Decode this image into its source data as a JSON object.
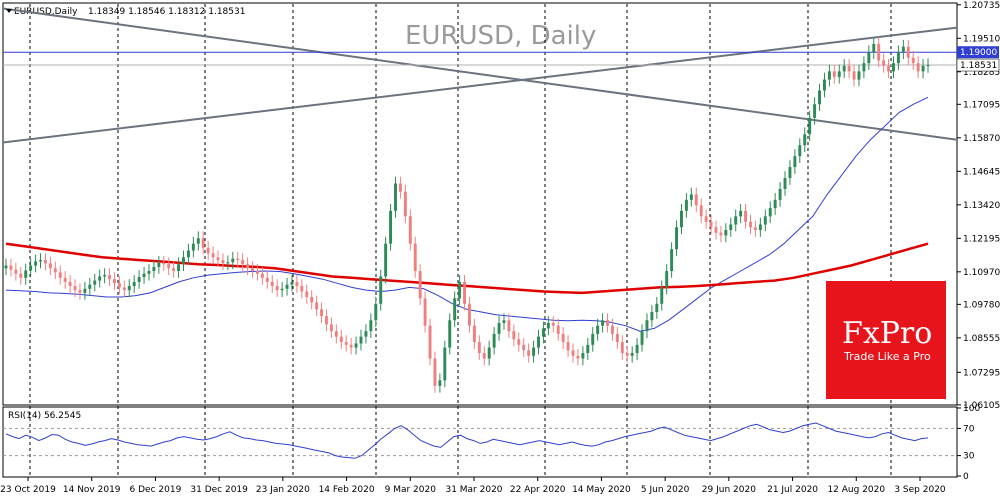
{
  "chart_data": [
    {
      "type": "candlestick",
      "symbol_header": "EURUSD,Daily",
      "ohlc_header": "1.18349 1.18546 1.18312 1.18531",
      "watermark": "EURUSD, Daily",
      "y_ticks": [
        "1.20735",
        "1.19510",
        "1.18285",
        "1.17095",
        "1.15870",
        "1.14645",
        "1.13420",
        "1.12195",
        "1.10970",
        "1.09780",
        "1.08555",
        "1.07295",
        "1.06105"
      ],
      "y_tick_values": [
        1.20735,
        1.1951,
        1.18285,
        1.17095,
        1.1587,
        1.14645,
        1.1342,
        1.12195,
        1.1097,
        1.0978,
        1.08555,
        1.07295,
        1.06105
      ],
      "ylim": [
        1.061,
        1.208
      ],
      "x_labels": [
        "23 Oct 2019",
        "14 Nov 2019",
        "6 Dec 2019",
        "31 Dec 2019",
        "23 Jan 2020",
        "14 Feb 2020",
        "9 Mar 2020",
        "31 Mar 2020",
        "22 Apr 2020",
        "14 May 2020",
        "5 Jun 2020",
        "29 Jun 2020",
        "21 Jul 2020",
        "12 Aug 2020",
        "3 Sep 2020"
      ],
      "horizontal_level": {
        "value": 1.19,
        "label": "1.19000",
        "color": "#2f3fcf"
      },
      "current_price": {
        "value": 1.18531,
        "label": "1.18531"
      },
      "colors": {
        "up": "#2e8b57",
        "down": "#f08080",
        "ma200": "#e00000",
        "ma50": "#2f3fcf",
        "trend": "#6b7380",
        "grid": "#000000"
      },
      "series": [
        {
          "name": "Close",
          "values": [
            1.112,
            1.1105,
            1.109,
            1.1075,
            1.1102,
            1.112,
            1.1135,
            1.114,
            1.1128,
            1.111,
            1.1095,
            1.1075,
            1.106,
            1.1045,
            1.103,
            1.102,
            1.1035,
            1.105,
            1.1065,
            1.108,
            1.1085,
            1.107,
            1.1055,
            1.104,
            1.103,
            1.1045,
            1.106,
            1.1078,
            1.109,
            1.11,
            1.1115,
            1.113,
            1.1125,
            1.111,
            1.11,
            1.1125,
            1.115,
            1.1175,
            1.12,
            1.122,
            1.1185,
            1.1165,
            1.115,
            1.114,
            1.1128,
            1.1132,
            1.1145,
            1.114,
            1.1125,
            1.111,
            1.11,
            1.109,
            1.1075,
            1.106,
            1.1045,
            1.103,
            1.1035,
            1.105,
            1.106,
            1.1045,
            1.1025,
            1.1005,
            1.0985,
            1.096,
            1.0935,
            1.0905,
            1.088,
            1.086,
            1.084,
            1.083,
            1.082,
            1.0835,
            1.086,
            1.088,
            1.092,
            1.098,
            1.108,
            1.12,
            1.132,
            1.142,
            1.139,
            1.13,
            1.12,
            1.11,
            1.1,
            1.09,
            1.078,
            1.068,
            1.07,
            1.082,
            1.092,
            1.1,
            1.106,
            1.098,
            1.09,
            1.084,
            1.08,
            1.078,
            1.082,
            1.087,
            1.091,
            1.092,
            1.088,
            1.085,
            1.083,
            1.081,
            1.079,
            1.082,
            1.086,
            1.089,
            1.091,
            1.09,
            1.087,
            1.084,
            1.081,
            1.079,
            1.078,
            1.08,
            1.083,
            1.087,
            1.09,
            1.092,
            1.09,
            1.087,
            1.084,
            1.08,
            1.079,
            1.08,
            1.083,
            1.088,
            1.092,
            1.095,
            1.098,
            1.104,
            1.11,
            1.118,
            1.126,
            1.132,
            1.136,
            1.138,
            1.134,
            1.13,
            1.128,
            1.126,
            1.124,
            1.123,
            1.125,
            1.127,
            1.13,
            1.132,
            1.128,
            1.126,
            1.125,
            1.127,
            1.13,
            1.133,
            1.136,
            1.14,
            1.144,
            1.148,
            1.152,
            1.156,
            1.16,
            1.166,
            1.171,
            1.176,
            1.18,
            1.183,
            1.181,
            1.183,
            1.185,
            1.183,
            1.18,
            1.183,
            1.186,
            1.19,
            1.193,
            1.187,
            1.185,
            1.183,
            1.186,
            1.19,
            1.192,
            1.188,
            1.186,
            1.183,
            1.185,
            1.1853
          ]
        },
        {
          "name": "SMA 50",
          "values": [
            1.103,
            1.1028,
            1.1025,
            1.102,
            1.1018,
            1.1015,
            1.101,
            1.1005,
            1.1005,
            1.101,
            1.102,
            1.104,
            1.106,
            1.1075,
            1.1085,
            1.109,
            1.1095,
            1.1098,
            1.11,
            1.1098,
            1.109,
            1.108,
            1.107,
            1.1055,
            1.104,
            1.103,
            1.1025,
            1.103,
            1.104,
            1.1035,
            1.101,
            1.098,
            1.096,
            1.095,
            1.094,
            1.0935,
            1.093,
            1.0925,
            1.092,
            1.0918,
            1.092,
            1.0918,
            1.0912,
            1.09,
            1.088,
            1.089,
            1.092,
            1.096,
            1.1,
            1.104,
            1.107,
            1.11,
            1.113,
            1.116,
            1.12,
            1.125,
            1.13,
            1.138,
            1.145,
            1.152,
            1.158,
            1.163,
            1.168,
            1.171,
            1.1735
          ]
        },
        {
          "name": "SMA 200",
          "values": [
            1.12,
            1.119,
            1.118,
            1.117,
            1.116,
            1.115,
            1.1145,
            1.114,
            1.1135,
            1.113,
            1.1125,
            1.1122,
            1.1118,
            1.1115,
            1.111,
            1.11,
            1.109,
            1.108,
            1.1075,
            1.107,
            1.1065,
            1.106,
            1.1055,
            1.105,
            1.1045,
            1.104,
            1.1035,
            1.103,
            1.1025,
            1.1022,
            1.102,
            1.1025,
            1.103,
            1.1035,
            1.104,
            1.1042,
            1.1045,
            1.105,
            1.1055,
            1.106,
            1.1065,
            1.1075,
            1.109,
            1.1105,
            1.112,
            1.114,
            1.116,
            1.118,
            1.12
          ]
        }
      ],
      "trendlines": [
        {
          "from": [
            "23 Oct 2019",
            1.206
          ],
          "to": [
            "3 Sep 2020",
            1.158
          ],
          "label": ""
        },
        {
          "from": [
            "23 Oct 2019",
            1.157
          ],
          "to": [
            "3 Sep 2020",
            1.199
          ],
          "label": ""
        }
      ],
      "vertical_markers_x_fraction_index": [
        1,
        3,
        5,
        7,
        8,
        10,
        11,
        14
      ]
    },
    {
      "type": "line",
      "name": "RSI(14)",
      "header": "RSI(14) 56.2545",
      "y_ticks": [
        "100",
        "70",
        "30",
        "0"
      ],
      "ylim": [
        0,
        100
      ],
      "levels": [
        70,
        30
      ],
      "values": [
        62,
        58,
        55,
        60,
        57,
        52,
        56,
        61,
        60,
        54,
        50,
        48,
        45,
        47,
        50,
        52,
        55,
        53,
        50,
        48,
        46,
        45,
        44,
        47,
        50,
        52,
        56,
        58,
        56,
        54,
        53,
        55,
        58,
        62,
        65,
        60,
        56,
        55,
        53,
        52,
        50,
        48,
        47,
        46,
        44,
        42,
        40,
        38,
        36,
        34,
        30,
        28,
        27,
        26,
        30,
        38,
        46,
        55,
        62,
        70,
        74,
        68,
        60,
        52,
        48,
        44,
        42,
        50,
        58,
        60,
        55,
        52,
        48,
        50,
        54,
        52,
        50,
        48,
        46,
        48,
        50,
        52,
        50,
        48,
        46,
        48,
        50,
        47,
        45,
        44,
        46,
        50,
        52,
        55,
        58,
        60,
        62,
        64,
        66,
        70,
        72,
        68,
        64,
        60,
        58,
        56,
        54,
        52,
        55,
        58,
        62,
        66,
        70,
        74,
        76,
        72,
        68,
        66,
        64,
        66,
        70,
        74,
        76,
        78,
        74,
        70,
        66,
        64,
        62,
        60,
        58,
        56,
        58,
        62,
        64,
        60,
        56,
        54,
        52,
        55,
        56
      ]
    }
  ],
  "branding": {
    "name": "FxPro",
    "tagline": "Trade Like a Pro",
    "color": "#e8141b"
  }
}
